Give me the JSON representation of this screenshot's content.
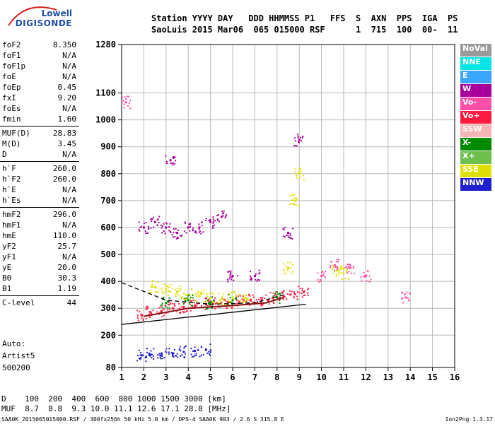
{
  "logo": {
    "line1": "Lowell",
    "line2": "DIGISONDE"
  },
  "header": {
    "row1": "Station YYYY DAY   DDD HHMMSS P1   FFS  S  AXN  PPS  IGA  PS",
    "row2": "SaoLuis 2015 Mar06  065 015000 RSF      1  715  100  00-  11"
  },
  "params": [
    [
      {
        "k": "foF2",
        "v": "8.350"
      },
      {
        "k": "foF1",
        "v": "N/A"
      },
      {
        "k": "foF1p",
        "v": "N/A"
      },
      {
        "k": "foE",
        "v": "N/A"
      },
      {
        "k": "foEp",
        "v": "0.45"
      },
      {
        "k": "fxI",
        "v": "9.20"
      },
      {
        "k": "foEs",
        "v": "N/A"
      },
      {
        "k": "fmin",
        "v": "1.60"
      }
    ],
    [
      {
        "k": "MUF(D)",
        "v": "28.83"
      },
      {
        "k": "M(D)",
        "v": "3.45"
      },
      {
        "k": "D",
        "v": "N/A"
      }
    ],
    [
      {
        "k": "h`F",
        "v": "260.0"
      },
      {
        "k": "h`F2",
        "v": "260.0"
      },
      {
        "k": "h`E",
        "v": "N/A"
      },
      {
        "k": "h`Es",
        "v": "N/A"
      }
    ],
    [
      {
        "k": "hmF2",
        "v": "296.0"
      },
      {
        "k": "hmF1",
        "v": "N/A"
      },
      {
        "k": "hmE",
        "v": "110.0"
      },
      {
        "k": "yF2",
        "v": "25.7"
      },
      {
        "k": "yF1",
        "v": "N/A"
      },
      {
        "k": "yE",
        "v": "20.0"
      },
      {
        "k": "B0",
        "v": "30.3"
      },
      {
        "k": "B1",
        "v": "1.19"
      }
    ],
    [
      {
        "k": "C-level",
        "v": "44"
      }
    ]
  ],
  "autoscale": {
    "line1": "Auto:",
    "line2": "Artist5",
    "line3": "500200"
  },
  "legend": [
    {
      "label": "NoVal",
      "color": "#9a9a9a"
    },
    {
      "label": "NNE",
      "color": "#00e5e5"
    },
    {
      "label": "E",
      "color": "#3aa6ff"
    },
    {
      "label": "W",
      "color": "#a8009c"
    },
    {
      "label": "Vo-",
      "color": "#ff4fa8"
    },
    {
      "label": "Vo+",
      "color": "#ff1a40"
    },
    {
      "label": "SSW",
      "color": "#f7b6b6"
    },
    {
      "label": "X-",
      "color": "#008a00"
    },
    {
      "label": "X+",
      "color": "#6fbf4f"
    },
    {
      "label": "SSE",
      "color": "#e0e000"
    },
    {
      "label": "NNW",
      "color": "#2020d0"
    }
  ],
  "dm_table": {
    "row1": "D    100  200  400  600  800 1000 1500 3000 [km]",
    "row2": "MUF  8.7  8.8  9.3 10.0 11.1 12.6 17.1 28.8 [MHz]"
  },
  "footer": {
    "left": "SAA0K_2015065015000.RSF / 300fx256h 50 kHz 5.0 km / DPS-4 SAA0K 903 / 2.6 S 315.8 E",
    "right": "Ion2Png 1.3.17"
  },
  "chart_data": {
    "type": "scatter",
    "x_range": [
      1,
      16
    ],
    "y_range": [
      80,
      1280
    ],
    "x_ticks": [
      1,
      2,
      3,
      4,
      5,
      6,
      7,
      8,
      9,
      10,
      11,
      12,
      13,
      14,
      15,
      16
    ],
    "y_ticks": [
      80,
      200,
      300,
      400,
      500,
      600,
      700,
      800,
      900,
      1000,
      1100,
      1280
    ],
    "series": [
      {
        "color": "#ff1a40",
        "points": [
          [
            1.9,
            275
          ],
          [
            2.3,
            285
          ],
          [
            2.8,
            290
          ],
          [
            3.3,
            300
          ],
          [
            3.8,
            305
          ],
          [
            4.3,
            310
          ],
          [
            4.8,
            315
          ],
          [
            5.3,
            320
          ],
          [
            5.8,
            322
          ],
          [
            6.3,
            325
          ],
          [
            6.8,
            330
          ],
          [
            7.3,
            332
          ],
          [
            7.8,
            338
          ],
          [
            8.3,
            345
          ],
          [
            8.8,
            352
          ],
          [
            9.2,
            360
          ]
        ]
      },
      {
        "color": "#e0e000",
        "points": [
          [
            2.5,
            380
          ],
          [
            3.0,
            370
          ],
          [
            3.5,
            360
          ],
          [
            4.0,
            350
          ],
          [
            4.5,
            345
          ],
          [
            5.0,
            338
          ],
          [
            5.5,
            335
          ],
          [
            6.0,
            340
          ],
          [
            6.5,
            338
          ],
          [
            8.5,
            450
          ],
          [
            8.8,
            700
          ],
          [
            9.0,
            800
          ],
          [
            10.7,
            440
          ],
          [
            11.0,
            430
          ]
        ]
      },
      {
        "color": "#a8009c",
        "points": [
          [
            2.0,
            600
          ],
          [
            2.5,
            620
          ],
          [
            3.0,
            600
          ],
          [
            3.2,
            850
          ],
          [
            3.5,
            580
          ],
          [
            4.0,
            600
          ],
          [
            4.5,
            600
          ],
          [
            5.0,
            620
          ],
          [
            5.5,
            640
          ],
          [
            6.0,
            420
          ],
          [
            7.0,
            420
          ],
          [
            8.5,
            580
          ],
          [
            9.0,
            925
          ]
        ]
      },
      {
        "color": "#2020d0",
        "points": [
          [
            1.9,
            125
          ],
          [
            2.3,
            128
          ],
          [
            2.8,
            130
          ],
          [
            3.3,
            133
          ],
          [
            3.8,
            138
          ],
          [
            4.3,
            142
          ],
          [
            4.8,
            145
          ]
        ]
      },
      {
        "color": "#ff4fa8",
        "points": [
          [
            10.0,
            420
          ],
          [
            10.6,
            460
          ],
          [
            11.3,
            450
          ],
          [
            12.0,
            420
          ],
          [
            13.8,
            340
          ],
          [
            1.2,
            1065
          ]
        ]
      },
      {
        "color": "#008a00",
        "points": [
          [
            3.0,
            320
          ],
          [
            4.0,
            330
          ],
          [
            5.0,
            320
          ],
          [
            6.0,
            330
          ],
          [
            8.0,
            340
          ]
        ]
      }
    ],
    "traces": [
      {
        "style": "solid",
        "points": [
          [
            1,
            240
          ],
          [
            9.3,
            315
          ]
        ]
      },
      {
        "style": "dashed",
        "points": [
          [
            1,
            395
          ],
          [
            3,
            330
          ],
          [
            5,
            315
          ],
          [
            7,
            320
          ],
          [
            8.3,
            350
          ]
        ]
      },
      {
        "style": "solid-red",
        "points": [
          [
            2,
            270
          ],
          [
            4,
            300
          ],
          [
            6,
            310
          ],
          [
            7.5,
            320
          ],
          [
            8.3,
            340
          ]
        ]
      }
    ]
  }
}
